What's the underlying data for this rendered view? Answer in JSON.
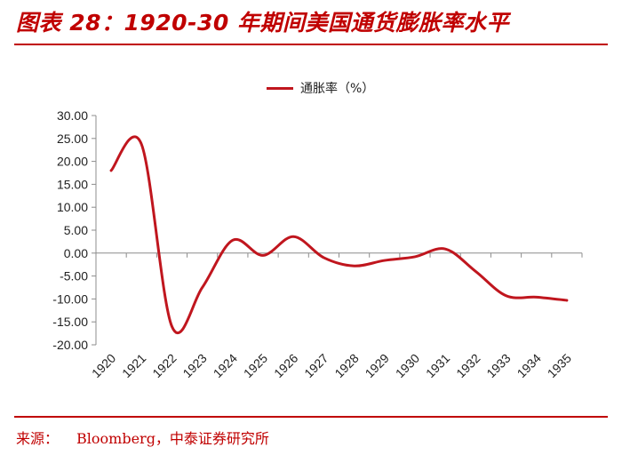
{
  "header": {
    "title": "图表 28：1920-30 年期间美国通货膨胀率水平"
  },
  "source": {
    "label": "来源：",
    "text": "Bloomberg，中泰证券研究所"
  },
  "colors": {
    "accent": "#c00000",
    "series": "#c0161e",
    "axis": "#8c8c8c"
  },
  "chart_data": {
    "type": "line",
    "title": "",
    "xlabel": "",
    "ylabel": "",
    "legend_position": "top-center",
    "categories": [
      "1920",
      "1921",
      "1922",
      "1923",
      "1924",
      "1925",
      "1926",
      "1927",
      "1928",
      "1929",
      "1930",
      "1931",
      "1932",
      "1933",
      "1934",
      "1935"
    ],
    "series": [
      {
        "name": "通胀率（%）",
        "values": [
          18.0,
          23.7,
          -16.0,
          -7.5,
          2.8,
          -0.5,
          3.6,
          -1.0,
          -2.8,
          -1.6,
          -0.8,
          0.9,
          -4.0,
          -9.3,
          -9.6,
          -10.3
        ]
      }
    ],
    "y_ticks": [
      "30.00",
      "25.00",
      "20.00",
      "15.00",
      "10.00",
      "5.00",
      "0.00",
      "-5.00",
      "-10.00",
      "-15.00",
      "-20.00"
    ],
    "ylim": [
      -20,
      30
    ],
    "grid": false
  }
}
